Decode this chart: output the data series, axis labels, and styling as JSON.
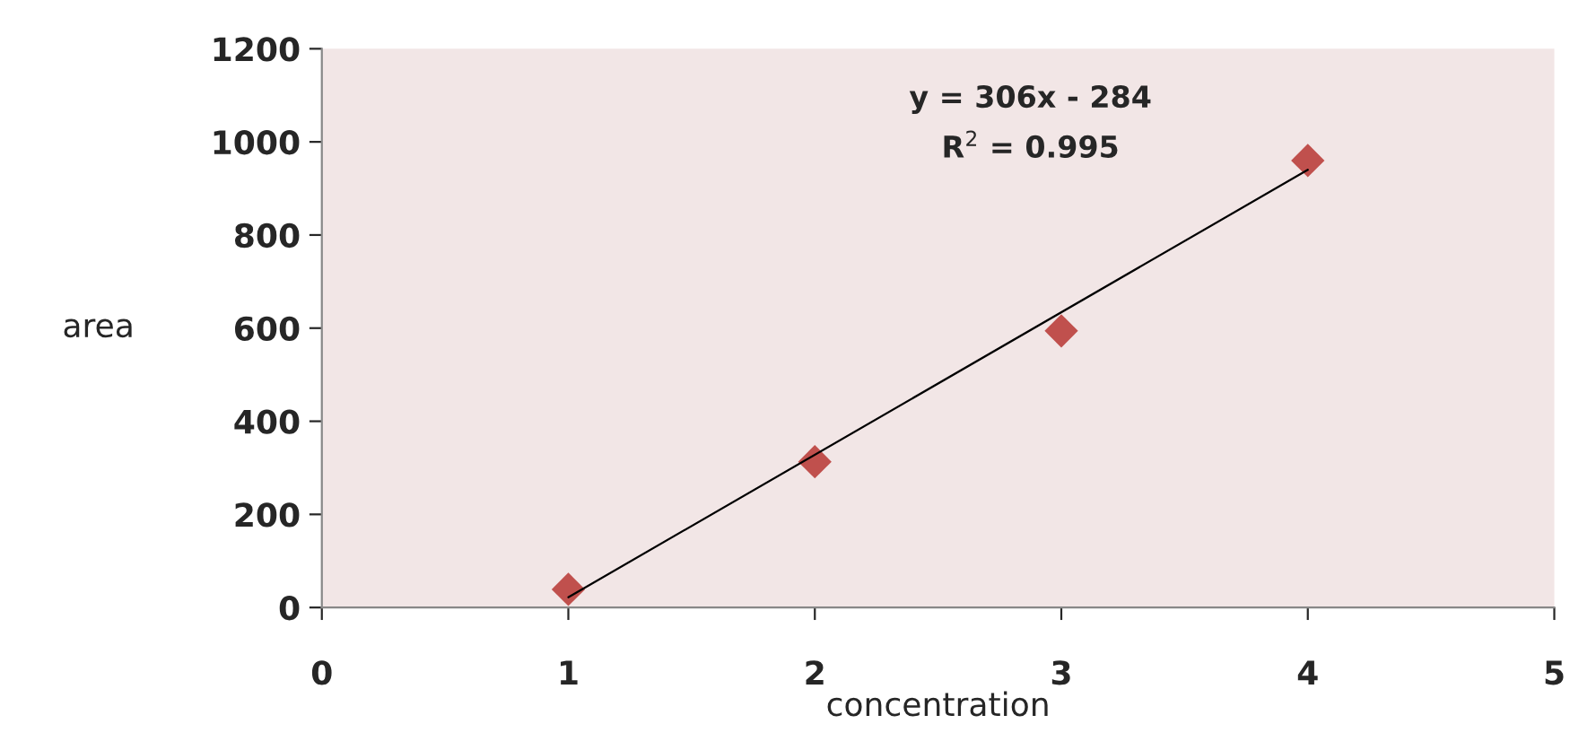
{
  "chart_data": {
    "type": "scatter",
    "xlabel": "concentration",
    "ylabel": "area",
    "annotations": [
      "y = 306x - 284",
      "R$^{2}$ = 0.995"
    ],
    "series": [
      {
        "color": "#c0504d",
        "x": [
          1,
          2,
          3,
          4
        ],
        "values": [
          39,
          313,
          594,
          960
        ],
        "marker": "diamond"
      },
      {
        "type": "line",
        "color": "#000000",
        "x": [
          1,
          4
        ],
        "values": [
          22,
          940
        ],
        "marker": "none",
        "line_style": "solid"
      }
    ],
    "xlim": [
      0,
      5
    ],
    "xticks": [
      0,
      1,
      2,
      3,
      4,
      5
    ],
    "ylim": [
      0,
      1200
    ],
    "yticks": [
      0,
      200,
      400,
      600,
      800,
      1000,
      1200
    ],
    "grid": false,
    "legend": false
  }
}
